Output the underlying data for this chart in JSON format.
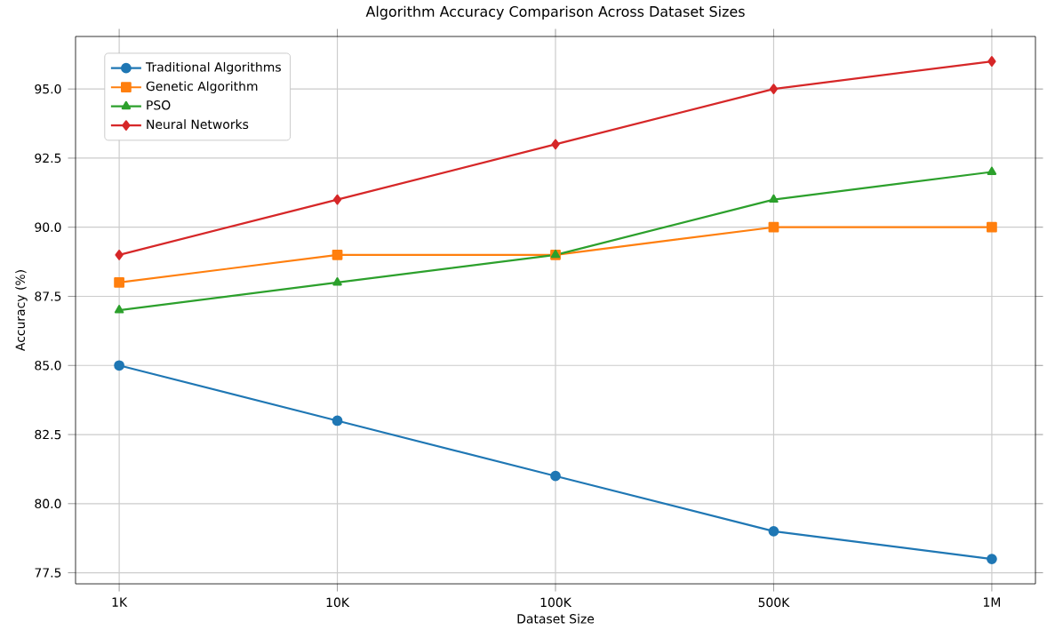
{
  "chart_data": {
    "type": "line",
    "title": "Algorithm Accuracy Comparison Across Dataset Sizes",
    "xlabel": "Dataset Size",
    "ylabel": "Accuracy (%)",
    "categories": [
      "1K",
      "10K",
      "100K",
      "500K",
      "1M"
    ],
    "series": [
      {
        "name": "Traditional Algorithms",
        "color": "#1f77b4",
        "marker": "circle",
        "values": [
          85,
          83,
          81,
          79,
          78
        ]
      },
      {
        "name": "Genetic Algorithm",
        "color": "#ff7f0e",
        "marker": "square",
        "values": [
          88,
          89,
          89,
          90,
          90
        ]
      },
      {
        "name": "PSO",
        "color": "#2ca02c",
        "marker": "triangle",
        "values": [
          87,
          88,
          89,
          91,
          92
        ]
      },
      {
        "name": "Neural Networks",
        "color": "#d62728",
        "marker": "diamond",
        "values": [
          89,
          91,
          93,
          95,
          96
        ]
      }
    ],
    "ylim": [
      77.1,
      96.9
    ],
    "yticks": [
      {
        "value": 77.5,
        "label": "77.5"
      },
      {
        "value": 80,
        "label": "80.0"
      },
      {
        "value": 82.5,
        "label": "82.5"
      },
      {
        "value": 85,
        "label": "85.0"
      },
      {
        "value": 87.5,
        "label": "87.5"
      },
      {
        "value": 90,
        "label": "90.0"
      },
      {
        "value": 92.5,
        "label": "92.5"
      },
      {
        "value": 95,
        "label": "95.0"
      }
    ],
    "grid": true,
    "legend": "top left",
    "line_style": "solid"
  }
}
